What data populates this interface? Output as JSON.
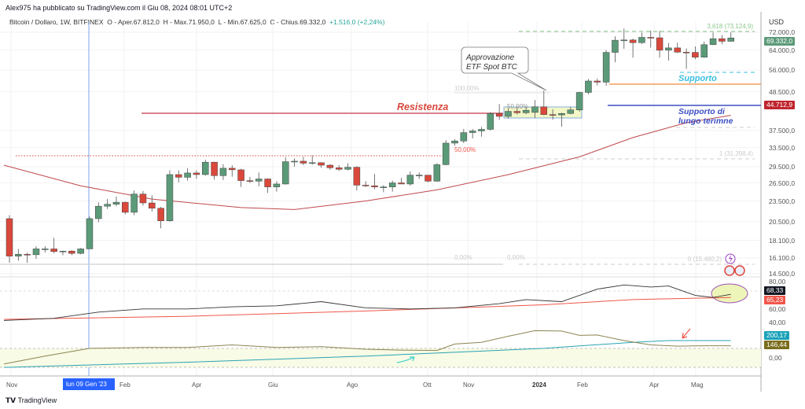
{
  "header": {
    "published": "Alex975 ha pubblicato su TradingView.com il Giu 08, 2024 08:01 UTC+2",
    "symbol": "Bitcoin / Dollaro, 1W, BITFINEX",
    "open": "O - Aper.67.812,0",
    "high": "H - Max.71.950,0",
    "low": "L - Min.67.625,0",
    "close": "C - Chius.69.332,0",
    "change": "+1.516,0 (+2,24%)"
  },
  "price_axis": {
    "currency": "USD",
    "labels": [
      "72.000,0",
      "64.000,0",
      "56.000,0",
      "48.500,0",
      "37.500,0",
      "33.500,0",
      "29.500,0",
      "26.500,0",
      "23.500,0",
      "20.500,0",
      "18.100,0",
      "16.100,0",
      "14.500,0"
    ],
    "last_price": "69.332,0",
    "support_price": "44.712,9"
  },
  "indicator_axis": {
    "labels": [
      "80,00",
      "60,00",
      "40,00",
      "0,00"
    ],
    "rsi": "68,33",
    "rsi_ma": "65,23",
    "ind2_a": "200,17",
    "ind2_b": "146,44"
  },
  "time_axis": {
    "labels": [
      "Nov",
      "Feb",
      "Apr",
      "Giu",
      "Ago",
      "Ott",
      "Nov",
      "2024",
      "Feb",
      "Apr",
      "Mag"
    ],
    "cursor": "lun 09 Gen '23"
  },
  "annotations": {
    "resistance": "Resistenza",
    "support": "Supporto",
    "long_support": "Supporto di lungo terimne",
    "callout": [
      "Approvazione",
      "ETF Spot BTC"
    ],
    "fib_50_red": "50,00%",
    "fib_100": "100,00%",
    "fib_50": "50,00%",
    "fib_0a": "0,00%",
    "fib_0b": "0,00%",
    "fib_ext": "3,618 (73.124,9)",
    "fib_1": "1 (31.398,4)",
    "fib_0c": "0 (15.460,2)"
  },
  "footer": {
    "brand": "TradingView"
  },
  "colors": {
    "up": "#5b9a78",
    "down": "#d9483b",
    "ma": "#c0494b",
    "rsi": "#333333",
    "rsi_ma": "#f0564a",
    "cyan": "#29a3b5",
    "olive": "#8a8550",
    "support_blue": "#3d4fc4",
    "orange": "#f08a3c"
  },
  "chart_data": {
    "type": "candlestick",
    "title": "Bitcoin / Dollaro, 1W, BITFINEX",
    "ylabel": "USD",
    "yscale": "log",
    "ylim": [
      14000,
      80000
    ],
    "candles": [
      [
        20900,
        21400,
        15600,
        16300
      ],
      [
        16300,
        17100,
        15800,
        16500
      ],
      [
        16500,
        16700,
        15600,
        16450
      ],
      [
        16450,
        17400,
        16000,
        17100
      ],
      [
        17100,
        17400,
        16700,
        17100
      ],
      [
        17100,
        18400,
        16600,
        16800
      ],
      [
        16800,
        16900,
        16400,
        16850
      ],
      [
        16850,
        16950,
        16400,
        16600
      ],
      [
        16600,
        17200,
        16500,
        17100
      ],
      [
        17100,
        21200,
        17100,
        20900
      ],
      [
        20900,
        23300,
        20400,
        22700
      ],
      [
        22700,
        23800,
        22300,
        23000
      ],
      [
        23000,
        24200,
        22700,
        23300
      ],
      [
        23300,
        23400,
        21500,
        21800
      ],
      [
        21800,
        25200,
        21400,
        24600
      ],
      [
        24600,
        25100,
        22800,
        23200
      ],
      [
        23200,
        24400,
        21900,
        22400
      ],
      [
        22400,
        22600,
        19600,
        20600
      ],
      [
        20600,
        28800,
        20500,
        28000
      ],
      [
        28000,
        28800,
        26600,
        27500
      ],
      [
        27500,
        29200,
        26900,
        28300
      ],
      [
        28300,
        28800,
        27200,
        28000
      ],
      [
        28000,
        30900,
        27800,
        30400
      ],
      [
        30400,
        30500,
        27100,
        27800
      ],
      [
        27800,
        30000,
        27000,
        29200
      ],
      [
        29200,
        29800,
        27600,
        28900
      ],
      [
        28900,
        29100,
        25800,
        26900
      ],
      [
        26900,
        27600,
        26500,
        26800
      ],
      [
        26800,
        28400,
        25900,
        27200
      ],
      [
        27200,
        27300,
        24800,
        25800
      ],
      [
        25800,
        26800,
        25000,
        26300
      ],
      [
        26300,
        31400,
        26200,
        30500
      ],
      [
        30500,
        31200,
        29500,
        30600
      ],
      [
        30600,
        31500,
        29800,
        30200
      ],
      [
        30200,
        31800,
        29900,
        30300
      ],
      [
        30300,
        30400,
        29300,
        29800
      ],
      [
        29800,
        30000,
        28900,
        29300
      ],
      [
        29300,
        29800,
        28700,
        29000
      ],
      [
        29000,
        30200,
        28800,
        29400
      ],
      [
        29400,
        29600,
        25200,
        26100
      ],
      [
        26100,
        26800,
        25800,
        26000
      ],
      [
        26000,
        28100,
        25400,
        25800
      ],
      [
        25800,
        26100,
        24900,
        25800
      ],
      [
        25800,
        26900,
        25000,
        26500
      ],
      [
        26500,
        27400,
        26300,
        26300
      ],
      [
        26300,
        28600,
        26000,
        27900
      ],
      [
        27900,
        28400,
        27200,
        27900
      ],
      [
        27900,
        27900,
        26600,
        26800
      ],
      [
        26800,
        30200,
        26700,
        29900
      ],
      [
        29900,
        35200,
        29800,
        34500
      ],
      [
        34500,
        35400,
        33900,
        35000
      ],
      [
        35000,
        37900,
        34500,
        37000
      ],
      [
        37000,
        37900,
        35600,
        37400
      ],
      [
        37400,
        38400,
        36000,
        37800
      ],
      [
        37800,
        42400,
        37500,
        42000
      ],
      [
        42000,
        44700,
        40300,
        41200
      ],
      [
        41200,
        43400,
        40600,
        42600
      ],
      [
        42600,
        44000,
        41700,
        42200
      ],
      [
        42200,
        43800,
        41800,
        42900
      ],
      [
        42300,
        45900,
        40800,
        43900
      ],
      [
        43900,
        48900,
        41500,
        41700
      ],
      [
        41700,
        43200,
        40300,
        41600
      ],
      [
        41600,
        42200,
        38500,
        42000
      ],
      [
        42000,
        43900,
        41800,
        43000
      ],
      [
        43000,
        48500,
        42500,
        48300
      ],
      [
        48300,
        52800,
        47700,
        52100
      ],
      [
        52100,
        52900,
        50600,
        51700
      ],
      [
        51700,
        64000,
        50500,
        63000
      ],
      [
        63000,
        70100,
        59000,
        68300
      ],
      [
        68300,
        73800,
        64500,
        68400
      ],
      [
        68400,
        69000,
        60800,
        67200
      ],
      [
        67200,
        71800,
        66600,
        69600
      ],
      [
        69600,
        72800,
        65000,
        69400
      ],
      [
        69400,
        72700,
        60800,
        63900
      ],
      [
        63900,
        67000,
        59700,
        64900
      ],
      [
        64900,
        67200,
        62700,
        63100
      ],
      [
        63100,
        64700,
        56500,
        63000
      ],
      [
        63000,
        65500,
        60200,
        61000
      ],
      [
        61000,
        67700,
        60800,
        66300
      ],
      [
        66300,
        71900,
        66100,
        69000
      ],
      [
        69000,
        70700,
        66500,
        67800
      ],
      [
        67812,
        71950,
        67625,
        69332
      ]
    ],
    "ma": [
      [
        0,
        29800
      ],
      [
        8,
        26000
      ],
      [
        16,
        23800
      ],
      [
        26,
        22500
      ],
      [
        32,
        22200
      ],
      [
        40,
        23500
      ],
      [
        48,
        25300
      ],
      [
        56,
        28000
      ],
      [
        64,
        31500
      ],
      [
        70,
        35800
      ],
      [
        76,
        39500
      ],
      [
        81,
        41500
      ]
    ],
    "rsi": [
      [
        0,
        42
      ],
      [
        5,
        44
      ],
      [
        10,
        50
      ],
      [
        15,
        53
      ],
      [
        20,
        53
      ],
      [
        25,
        55
      ],
      [
        30,
        56
      ],
      [
        35,
        60
      ],
      [
        40,
        54
      ],
      [
        45,
        53
      ],
      [
        50,
        54
      ],
      [
        55,
        58
      ],
      [
        58,
        62
      ],
      [
        62,
        60
      ],
      [
        66,
        72
      ],
      [
        69,
        76
      ],
      [
        72,
        74
      ],
      [
        74,
        75
      ],
      [
        77,
        66
      ],
      [
        79,
        64
      ],
      [
        81,
        67
      ]
    ],
    "rsi_ma": [
      [
        0,
        43
      ],
      [
        20,
        46
      ],
      [
        40,
        51
      ],
      [
        60,
        57
      ],
      [
        70,
        62
      ],
      [
        81,
        64
      ]
    ],
    "ind2_olive": [
      [
        0,
        -70
      ],
      [
        4,
        20
      ],
      [
        9,
        110
      ],
      [
        15,
        120
      ],
      [
        20,
        120
      ],
      [
        25,
        150
      ],
      [
        30,
        120
      ],
      [
        35,
        130
      ],
      [
        40,
        100
      ],
      [
        44,
        90
      ],
      [
        48,
        85
      ],
      [
        50,
        160
      ],
      [
        53,
        180
      ],
      [
        56,
        250
      ],
      [
        59,
        315
      ],
      [
        62,
        310
      ],
      [
        64,
        260
      ],
      [
        66,
        265
      ],
      [
        69,
        200
      ],
      [
        72,
        150
      ],
      [
        75,
        135
      ],
      [
        78,
        140
      ],
      [
        81,
        140
      ]
    ],
    "ind2_cyan": [
      [
        0,
        -110
      ],
      [
        20,
        -50
      ],
      [
        40,
        20
      ],
      [
        60,
        110
      ],
      [
        70,
        180
      ],
      [
        74,
        200
      ],
      [
        81,
        200
      ]
    ]
  }
}
